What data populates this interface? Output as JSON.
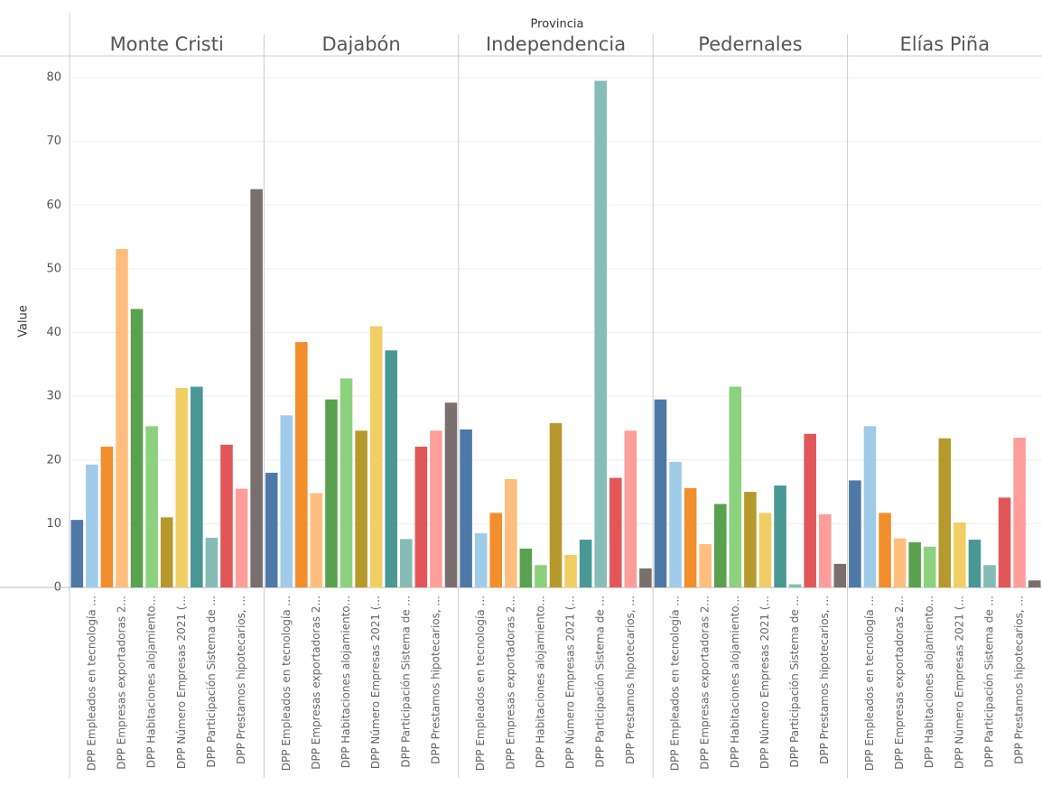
{
  "chart_data": {
    "type": "bar",
    "header": "Provincia",
    "ylabel": "Value",
    "categories": [
      null,
      "DPP Empleados en tecnología ...",
      null,
      "DPP Empresas exportadoras 2...",
      null,
      "DPP Habitaciones alojamiento...",
      null,
      "DPP Número Empresas 2021 (...",
      null,
      "DPP Participación Sistema de ...",
      null,
      "DPP Prestamos hipotecarios, ...",
      null
    ],
    "colors": [
      "#4e79a7",
      "#a0cbe8",
      "#f28e2b",
      "#ffbe7d",
      "#59a14f",
      "#8cd17d",
      "#b6992d",
      "#f1ce63",
      "#499894",
      "#86bcb6",
      "#e15759",
      "#ff9d9a",
      "#79706e"
    ],
    "panels": [
      {
        "name": "Monte Cristi",
        "values": [
          10.6,
          19.3,
          22.1,
          53.1,
          43.7,
          25.3,
          11.0,
          31.3,
          31.5,
          7.8,
          22.4,
          15.5,
          62.5
        ]
      },
      {
        "name": "Dajabón",
        "values": [
          18.0,
          27.0,
          38.5,
          14.8,
          29.5,
          32.8,
          24.6,
          41.0,
          37.2,
          7.6,
          22.1,
          24.6,
          29.0
        ]
      },
      {
        "name": "Independencia",
        "values": [
          24.8,
          8.5,
          11.7,
          17.0,
          6.1,
          3.5,
          25.8,
          5.1,
          7.5,
          79.5,
          17.2,
          24.6,
          3.0
        ]
      },
      {
        "name": "Pedernales",
        "values": [
          29.5,
          19.7,
          15.6,
          6.8,
          13.1,
          31.5,
          15.0,
          11.7,
          16.0,
          0.5,
          24.1,
          11.5,
          3.7
        ]
      },
      {
        "name": "Elías Piña",
        "values": [
          16.8,
          25.3,
          11.7,
          7.7,
          7.1,
          6.4,
          23.4,
          10.2,
          7.5,
          3.5,
          14.1,
          23.5,
          1.1
        ]
      }
    ],
    "ylim": [
      0,
      83.4
    ],
    "yticks": [
      0,
      10,
      20,
      30,
      40,
      50,
      60,
      70,
      80
    ],
    "grid": true
  }
}
